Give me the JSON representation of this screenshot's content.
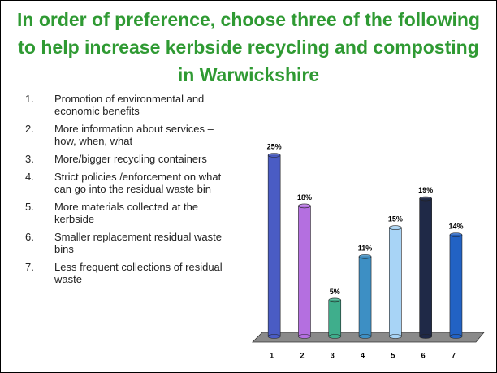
{
  "title": "In order of preference, choose three of the following to help increase kerbside recycling and composting in Warwickshire",
  "options": [
    {
      "number": "1.",
      "text": "Promotion of environmental and economic benefits"
    },
    {
      "number": "2.",
      "text": "More information about services – how, when, what"
    },
    {
      "number": "3.",
      "text": "More/bigger recycling containers"
    },
    {
      "number": "4.",
      "text": "Strict policies /enforcement on what can go into the residual waste bin"
    },
    {
      "number": "5.",
      "text": "More materials collected at the kerbside"
    },
    {
      "number": "6.",
      "text": "Smaller replacement residual waste bins"
    },
    {
      "number": "7.",
      "text": "Less frequent collections of residual waste"
    }
  ],
  "chart_data": {
    "type": "bar",
    "categories": [
      "1",
      "2",
      "3",
      "4",
      "5",
      "6",
      "7"
    ],
    "values": [
      25,
      18,
      5,
      11,
      15,
      19,
      14
    ],
    "value_labels": [
      "25%",
      "18%",
      "5%",
      "11%",
      "15%",
      "19%",
      "14%"
    ],
    "colors": [
      "#4a5cc4",
      "#b46fe0",
      "#3fae8c",
      "#3d8fc4",
      "#a8d4f6",
      "#1f2947",
      "#2262c4"
    ],
    "ylim": [
      0,
      25
    ]
  }
}
